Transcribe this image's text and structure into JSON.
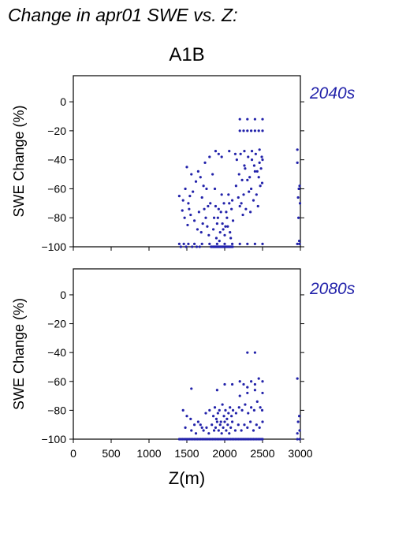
{
  "page": {
    "title": "Change in apr01 SWE vs. Z:",
    "scenario": "A1B"
  },
  "chart_data": [
    {
      "type": "scatter",
      "annotation": "2040s",
      "ylabel": "SWE Change (%)",
      "xlabel": "",
      "xlim": [
        0,
        3000
      ],
      "ylim": [
        -100,
        18
      ],
      "yticks": [
        0,
        -20,
        -40,
        -60,
        -80,
        -100
      ],
      "xticks": [
        0,
        500,
        1000,
        1500,
        2000,
        2500,
        3000
      ],
      "grid": false,
      "color": "#2222aa",
      "x": [
        1400,
        1450,
        1480,
        1500,
        1520,
        1540,
        1560,
        1580,
        1620,
        1650,
        1680,
        1700,
        1720,
        1740,
        1760,
        1780,
        1800,
        1840,
        1860,
        1880,
        1900,
        1920,
        1940,
        1960,
        1980,
        2000,
        2020,
        2040,
        2060,
        2080,
        2100,
        2150,
        2200,
        2250,
        2300,
        2350,
        2400,
        2450,
        2480,
        2500,
        2960,
        2990,
        1440,
        1470,
        1510,
        1530,
        1550,
        1600,
        1640,
        1660,
        1690,
        1710,
        1730,
        1750,
        1770,
        1790,
        1810,
        1850,
        1870,
        1890,
        1910,
        1930,
        1950,
        1970,
        1990,
        2010,
        2030,
        2050,
        2070,
        2090,
        2110,
        2160,
        2210,
        2260,
        2310,
        2360,
        2410,
        2460,
        2490,
        2970,
        2980,
        2995,
        1420,
        1490,
        1570,
        1630,
        1670,
        1820,
        1830,
        1845,
        1855,
        1865,
        1875,
        1885,
        1895,
        1905,
        1915,
        1925,
        1935,
        1945,
        1955,
        1965,
        1975,
        1985,
        1995,
        2005,
        2015,
        2025,
        2035,
        2045,
        2055,
        2065,
        2075,
        2085,
        2095,
        2105,
        2180,
        2220,
        2240,
        2280,
        2320,
        2340,
        2380,
        2420,
        2440,
        2470,
        2190,
        2230,
        2270,
        2330,
        2390,
        2430,
        2495,
        2975,
        2985,
        1400,
        1460,
        1520,
        1600,
        1700,
        1800,
        1900,
        2000,
        2100,
        2200,
        2300,
        2400,
        2500,
        2960,
        2990,
        1880,
        1920,
        1960,
        2060,
        2140,
        2260,
        2360,
        2460,
        2200,
        2300,
        2400,
        2500,
        2200,
        2250,
        2300,
        2350,
        2400,
        2450,
        2500,
        2960
      ],
      "y": [
        -65,
        -68,
        -60,
        -45,
        -70,
        -65,
        -50,
        -62,
        -55,
        -48,
        -52,
        -66,
        -58,
        -42,
        -60,
        -72,
        -38,
        -50,
        -80,
        -72,
        -84,
        -74,
        -90,
        -64,
        -88,
        -92,
        -76,
        -86,
        -70,
        -94,
        -68,
        -58,
        -72,
        -64,
        -54,
        -60,
        -48,
        -52,
        -46,
        -40,
        -42,
        -58,
        -75,
        -80,
        -85,
        -74,
        -78,
        -82,
        -88,
        -76,
        -90,
        -84,
        -74,
        -80,
        -86,
        -92,
        -70,
        -88,
        -60,
        -94,
        -80,
        -96,
        -76,
        -84,
        -70,
        -86,
        -80,
        -64,
        -90,
        -74,
        -82,
        -40,
        -36,
        -44,
        -38,
        -40,
        -36,
        -42,
        -38,
        -66,
        -60,
        -70,
        -100,
        -100,
        -100,
        -100,
        -100,
        -100,
        -100,
        -100,
        -100,
        -100,
        -100,
        -100,
        -100,
        -100,
        -100,
        -100,
        -100,
        -100,
        -100,
        -100,
        -100,
        -100,
        -100,
        -100,
        -100,
        -100,
        -100,
        -100,
        -100,
        -100,
        -100,
        -100,
        -100,
        -100,
        -66,
        -70,
        -78,
        -74,
        -62,
        -76,
        -68,
        -64,
        -72,
        -58,
        -50,
        -54,
        -46,
        -52,
        -44,
        -48,
        -56,
        -80,
        -96,
        -98,
        -98,
        -98,
        -98,
        -98,
        -98,
        -98,
        -98,
        -98,
        -98,
        -98,
        -98,
        -98,
        -98,
        -98,
        -34,
        -36,
        -38,
        -34,
        -36,
        -34,
        -34,
        -33,
        -12,
        -12,
        -12,
        -12,
        -20,
        -20,
        -20,
        -20,
        -20,
        -20,
        -20,
        -33
      ],
      "n_points": 0
    },
    {
      "type": "scatter",
      "annotation": "2080s",
      "ylabel": "SWE Change (%)",
      "xlabel": "Z(m)",
      "xlim": [
        0,
        3000
      ],
      "ylim": [
        -100,
        18
      ],
      "yticks": [
        0,
        -20,
        -40,
        -60,
        -80,
        -100
      ],
      "xticks": [
        0,
        500,
        1000,
        1500,
        2000,
        2500,
        3000
      ],
      "xticklabels": [
        "0",
        "500",
        "1000",
        "1500",
        "2000",
        "2500",
        "3000"
      ],
      "grid": false,
      "color": "#2222aa",
      "x": [
        1400,
        1420,
        1440,
        1460,
        1480,
        1500,
        1520,
        1540,
        1560,
        1580,
        1600,
        1620,
        1640,
        1660,
        1680,
        1700,
        1720,
        1740,
        1760,
        1780,
        1800,
        1820,
        1840,
        1860,
        1880,
        1900,
        1920,
        1940,
        1960,
        1980,
        2000,
        2020,
        2040,
        2060,
        2080,
        2100,
        2120,
        2140,
        2160,
        2180,
        2200,
        2220,
        2240,
        2260,
        2280,
        2300,
        2320,
        2340,
        2360,
        2380,
        2400,
        2420,
        2440,
        2460,
        2480,
        2500,
        2960,
        2990,
        1450,
        1500,
        1550,
        1600,
        1650,
        1700,
        1750,
        1800,
        1850,
        1870,
        1890,
        1910,
        1930,
        1950,
        1970,
        1990,
        2010,
        2030,
        2050,
        2070,
        2090,
        2110,
        2150,
        2190,
        2230,
        2270,
        2310,
        2350,
        2390,
        2430,
        2470,
        2495,
        2970,
        2985,
        1480,
        1560,
        1620,
        1680,
        1720,
        1760,
        1790,
        1830,
        1860,
        1880,
        1900,
        1920,
        1940,
        1960,
        1980,
        2000,
        2020,
        2040,
        2060,
        2080,
        2100,
        2140,
        2180,
        2220,
        2260,
        2300,
        2340,
        2380,
        2420,
        2460,
        2500,
        2960,
        2990,
        2200,
        2250,
        2300,
        2350,
        2400,
        2450,
        2500,
        2200,
        2300,
        2400,
        2500,
        2300,
        2400,
        2960,
        1560,
        1900,
        2000,
        2100
      ],
      "y": [
        -100,
        -100,
        -100,
        -100,
        -100,
        -100,
        -100,
        -100,
        -100,
        -100,
        -100,
        -100,
        -100,
        -100,
        -100,
        -100,
        -100,
        -100,
        -100,
        -100,
        -100,
        -100,
        -100,
        -100,
        -100,
        -100,
        -100,
        -100,
        -100,
        -100,
        -100,
        -100,
        -100,
        -100,
        -100,
        -100,
        -100,
        -100,
        -100,
        -100,
        -100,
        -100,
        -100,
        -100,
        -100,
        -100,
        -100,
        -100,
        -100,
        -100,
        -100,
        -100,
        -100,
        -100,
        -100,
        -100,
        -100,
        -100,
        -80,
        -84,
        -86,
        -90,
        -88,
        -92,
        -82,
        -80,
        -84,
        -78,
        -86,
        -82,
        -80,
        -88,
        -76,
        -84,
        -80,
        -86,
        -82,
        -78,
        -84,
        -80,
        -82,
        -78,
        -80,
        -76,
        -82,
        -78,
        -80,
        -74,
        -78,
        -80,
        -88,
        -84,
        -92,
        -94,
        -96,
        -90,
        -94,
        -92,
        -96,
        -90,
        -94,
        -92,
        -88,
        -94,
        -90,
        -96,
        -92,
        -88,
        -94,
        -90,
        -96,
        -92,
        -88,
        -94,
        -90,
        -94,
        -90,
        -92,
        -88,
        -94,
        -90,
        -92,
        -88,
        -96,
        -94,
        -60,
        -62,
        -64,
        -60,
        -62,
        -58,
        -60,
        -70,
        -68,
        -66,
        -68,
        -40,
        -40,
        -58,
        -65,
        -66,
        -62,
        -62
      ],
      "n_points": 0
    }
  ]
}
